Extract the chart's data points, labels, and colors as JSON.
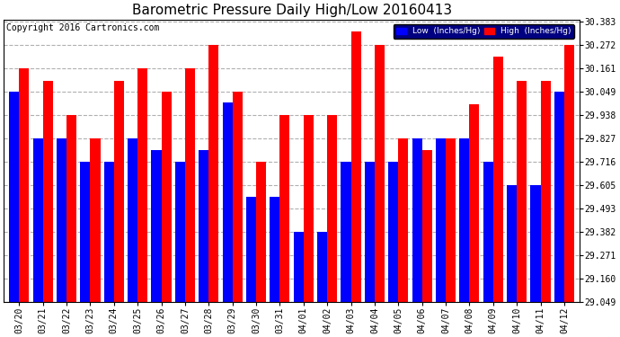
{
  "title": "Barometric Pressure Daily High/Low 20160413",
  "copyright": "Copyright 2016 Cartronics.com",
  "legend_low": "Low  (Inches/Hg)",
  "legend_high": "High  (Inches/Hg)",
  "dates": [
    "03/20",
    "03/21",
    "03/22",
    "03/23",
    "03/24",
    "03/25",
    "03/26",
    "03/27",
    "03/28",
    "03/29",
    "03/30",
    "03/31",
    "04/01",
    "04/02",
    "04/03",
    "04/04",
    "04/05",
    "04/06",
    "04/07",
    "04/08",
    "04/09",
    "04/10",
    "04/11",
    "04/12"
  ],
  "high_values": [
    30.161,
    30.1,
    29.938,
    29.828,
    30.1,
    30.161,
    30.049,
    30.161,
    30.272,
    30.049,
    29.716,
    29.938,
    29.938,
    29.938,
    30.338,
    30.272,
    29.827,
    29.771,
    29.827,
    29.99,
    30.216,
    30.1,
    30.1,
    30.272
  ],
  "low_values": [
    30.049,
    29.827,
    29.827,
    29.716,
    29.716,
    29.827,
    29.771,
    29.716,
    29.771,
    30.0,
    29.549,
    29.549,
    29.382,
    29.382,
    29.716,
    29.716,
    29.716,
    29.827,
    29.827,
    29.827,
    29.716,
    29.605,
    29.605,
    30.049
  ],
  "ylim_min": 29.049,
  "ylim_max": 30.394,
  "yticks": [
    29.049,
    29.16,
    29.271,
    29.382,
    29.493,
    29.605,
    29.716,
    29.827,
    29.938,
    30.049,
    30.161,
    30.272,
    30.383
  ],
  "high_color": "#ff0000",
  "low_color": "#0000ff",
  "bg_color": "#ffffff",
  "grid_color": "#b0b0b0",
  "title_fontsize": 11,
  "tick_fontsize": 7,
  "copyright_fontsize": 7
}
